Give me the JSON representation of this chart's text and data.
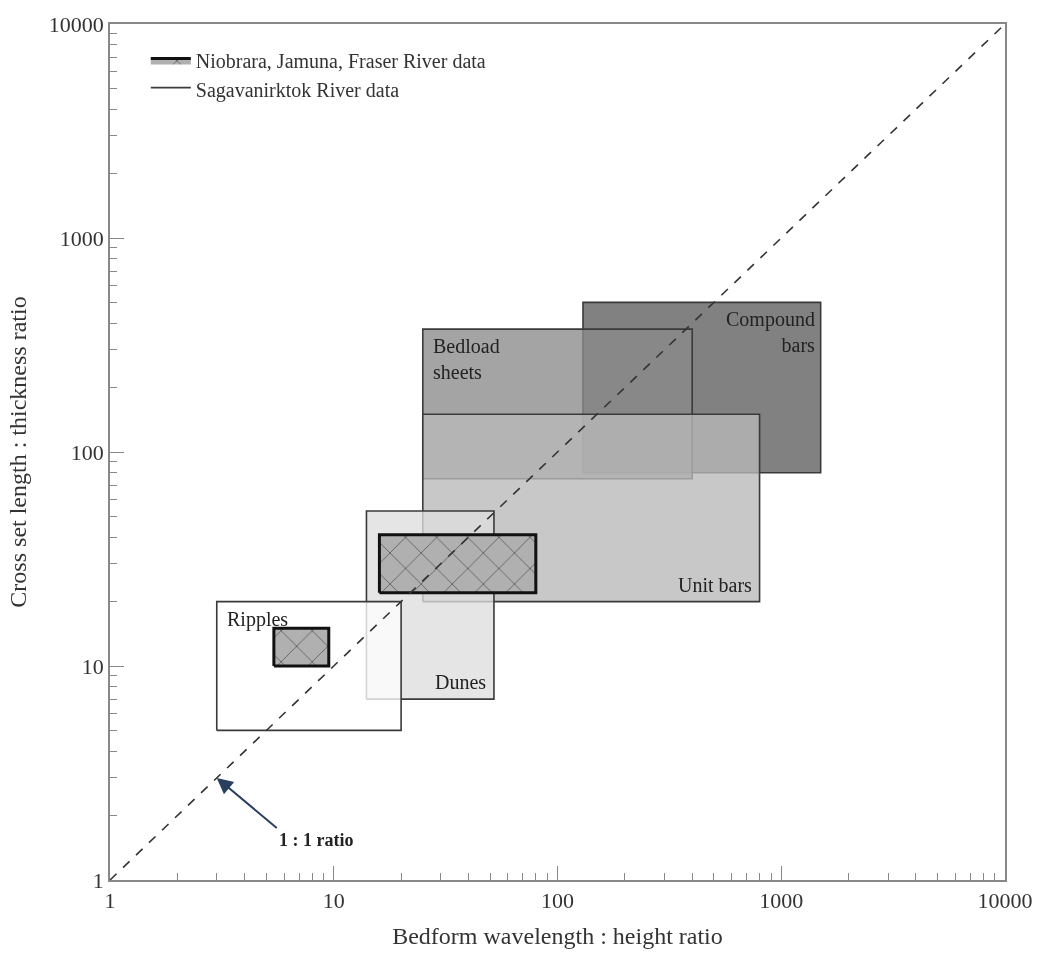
{
  "chart_data": {
    "type": "area",
    "xlabel": "Bedform wavelength : height ratio",
    "ylabel": "Cross set length : thickness ratio",
    "log": "xy",
    "xlim": [
      1,
      10000
    ],
    "ylim": [
      1,
      10000
    ],
    "legend": "top left",
    "marker": "none",
    "xticks": [
      1,
      {
        "value": 2,
        "label": null
      },
      {
        "value": 3,
        "label": null
      },
      {
        "value": 4,
        "label": null
      },
      {
        "value": 5,
        "label": null
      },
      {
        "value": 6,
        "label": null
      },
      {
        "value": 7,
        "label": null
      },
      {
        "value": 8,
        "label": null
      },
      {
        "value": 9,
        "label": null
      },
      10,
      {
        "value": 20,
        "label": null
      },
      {
        "value": 30,
        "label": null
      },
      {
        "value": 40,
        "label": null
      },
      {
        "value": 50,
        "label": null
      },
      {
        "value": 60,
        "label": null
      },
      {
        "value": 70,
        "label": null
      },
      {
        "value": 80,
        "label": null
      },
      {
        "value": 90,
        "label": null
      },
      100,
      {
        "value": 200,
        "label": null
      },
      {
        "value": 300,
        "label": null
      },
      {
        "value": 400,
        "label": null
      },
      {
        "value": 500,
        "label": null
      },
      {
        "value": 600,
        "label": null
      },
      {
        "value": 700,
        "label": null
      },
      {
        "value": 800,
        "label": null
      },
      {
        "value": 900,
        "label": null
      },
      1000,
      {
        "value": 2000,
        "label": null
      },
      {
        "value": 3000,
        "label": null
      },
      {
        "value": 4000,
        "label": null
      },
      {
        "value": 5000,
        "label": null
      },
      {
        "value": 6000,
        "label": null
      },
      {
        "value": 7000,
        "label": null
      },
      {
        "value": 8000,
        "label": null
      },
      {
        "value": 9000,
        "label": null
      },
      10000
    ],
    "yticks": [
      1,
      {
        "value": 2,
        "label": null
      },
      {
        "value": 3,
        "label": null
      },
      {
        "value": 4,
        "label": null
      },
      {
        "value": 5,
        "label": null
      },
      {
        "value": 6,
        "label": null
      },
      {
        "value": 7,
        "label": null
      },
      {
        "value": 8,
        "label": null
      },
      {
        "value": 9,
        "label": null
      },
      10,
      {
        "value": 20,
        "label": null
      },
      {
        "value": 30,
        "label": null
      },
      {
        "value": 40,
        "label": null
      },
      {
        "value": 50,
        "label": null
      },
      {
        "value": 60,
        "label": null
      },
      {
        "value": 70,
        "label": null
      },
      {
        "value": 80,
        "label": null
      },
      {
        "value": 90,
        "label": null
      },
      100,
      {
        "value": 200,
        "label": null
      },
      {
        "value": 300,
        "label": null
      },
      {
        "value": 400,
        "label": null
      },
      {
        "value": 500,
        "label": null
      },
      {
        "value": 600,
        "label": null
      },
      {
        "value": 700,
        "label": null
      },
      {
        "value": 800,
        "label": null
      },
      {
        "value": 900,
        "label": null
      },
      1000,
      {
        "value": 2000,
        "label": null
      },
      {
        "value": 3000,
        "label": null
      },
      {
        "value": 4000,
        "label": null
      },
      {
        "value": 5000,
        "label": null
      },
      {
        "value": 6000,
        "label": null
      },
      {
        "value": 7000,
        "label": null
      },
      {
        "value": 8000,
        "label": null
      },
      {
        "value": 9000,
        "label": null
      },
      10000
    ],
    "series": [
      {
        "color": "#5e5e5e",
        "x": [
          130,
          1500,
          1500,
          130,
          130
        ],
        "values": [
          80,
          80,
          500,
          500,
          80
        ]
      },
      {
        "color": "#8a8a8a",
        "x": [
          25,
          400,
          400,
          25,
          25
        ],
        "values": [
          75,
          75,
          375,
          375,
          75
        ]
      },
      {
        "color": "#b8b8b8",
        "x": [
          25,
          800,
          800,
          25,
          25
        ],
        "values": [
          20,
          20,
          150,
          150,
          20
        ]
      },
      {
        "color": "#dedede",
        "x": [
          14,
          52,
          52,
          14,
          14
        ],
        "values": [
          7,
          7,
          53,
          53,
          7
        ]
      },
      {
        "name": "Sagavanirktok River data",
        "color": "#ffffff",
        "x": [
          3,
          20,
          20,
          3,
          3
        ],
        "values": [
          5,
          5,
          20,
          20,
          5
        ]
      },
      {
        "name": "Niobrara, Jamuna, Fraser River data",
        "color": "#b0b0b0",
        "x": [
          5.4,
          9.5,
          9.5,
          5.4,
          5.4,
          null,
          16,
          80,
          80,
          16,
          16
        ],
        "values": [
          10,
          10,
          15,
          15,
          10,
          null,
          22,
          22,
          41,
          41,
          22
        ]
      },
      {
        "type": "line",
        "line_style": "dashed",
        "color": "#333333",
        "x": [
          1,
          10000
        ],
        "values": [
          1,
          10000
        ]
      }
    ],
    "annotations": [
      {
        "text": "Ripples",
        "x": 3,
        "y": 20
      },
      {
        "text": "Dunes",
        "x": 52,
        "y": 7
      },
      {
        "text": "Unit bars",
        "x": 800,
        "y": 20
      },
      {
        "text": "Bedload\nsheets",
        "x": 25,
        "y": 375
      },
      {
        "text": "Compound\nbars",
        "x": 1500,
        "y": 500
      },
      {
        "text": "1 : 1 ratio",
        "x": 3,
        "y": 3
      }
    ]
  }
}
